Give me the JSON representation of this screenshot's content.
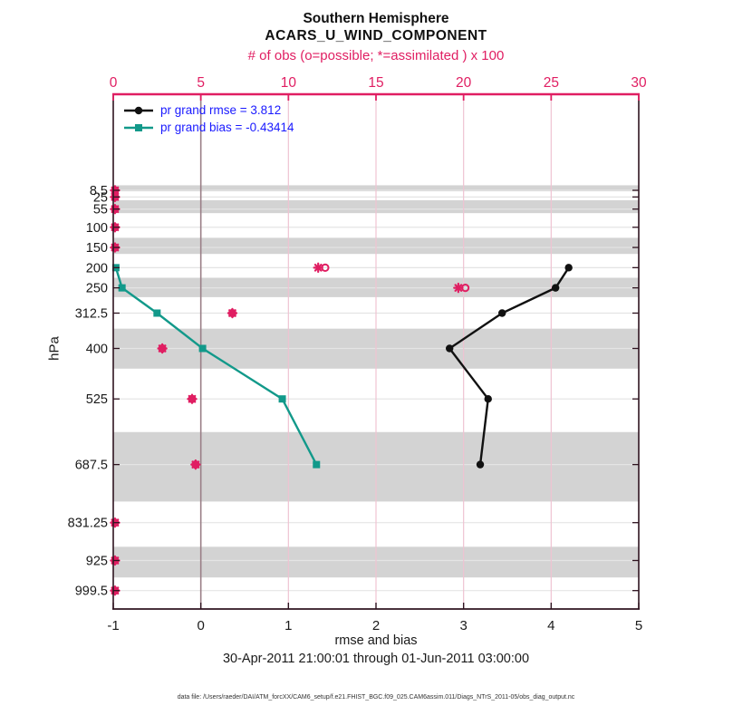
{
  "figure": {
    "title1": "Southern Hemisphere",
    "title2": "ACARS_U_WIND_COMPONENT",
    "top_axis_label": "# of obs (o=possible; *=assimilated ) x 100",
    "x_axis_label": "rmse and bias",
    "y_axis_label": "hPa",
    "date_range": "30-Apr-2011 21:00:01 through 01-Jun-2011 03:00:00",
    "data_file_note": "data file: /Users/raeder/DAI/ATM_forcXX/CAM6_setup/f.e21.FHIST_BGC.f09_025.CAM6assim.011/Diags_NTrS_2011-05/obs_diag_output.nc"
  },
  "legend": {
    "rmse_label": "pr grand rmse = 3.812",
    "bias_label": "pr grand bias = -0.43414"
  },
  "chart_data": {
    "type": "line",
    "orientation": "vertical-profile",
    "title": "Southern Hemisphere ACARS_U_WIND_COMPONENT",
    "x_axis": {
      "label": "rmse and bias",
      "range": [
        -1,
        5
      ],
      "ticks": [
        -1,
        0,
        1,
        2,
        3,
        4,
        5
      ]
    },
    "top_axis": {
      "label": "# of obs (o=possible; *=assimilated ) x 100",
      "range": [
        0,
        30
      ],
      "ticks": [
        0,
        5,
        10,
        15,
        20,
        25,
        30
      ]
    },
    "y_axis": {
      "label": "hPa",
      "direction": "pressure-increasing-downward",
      "tick_levels": [
        8.5,
        25,
        55,
        100,
        150,
        200,
        250,
        312.5,
        400,
        525,
        687.5,
        831.25,
        925,
        999.5
      ]
    },
    "series": [
      {
        "name": "pr grand rmse = 3.812",
        "marker": "circle",
        "color_key": "rmse",
        "levels": [
          200,
          250,
          312.5,
          400,
          525,
          687.5
        ],
        "values": [
          4.2,
          4.05,
          3.44,
          2.84,
          3.28,
          3.19
        ]
      },
      {
        "name": "pr grand bias = -0.43414",
        "marker": "square",
        "color_key": "bias",
        "levels": [
          200,
          250,
          312.5,
          400,
          525,
          687.5
        ],
        "values": [
          -0.97,
          -0.9,
          -0.5,
          0.02,
          0.93,
          1.32
        ]
      }
    ],
    "obs_counts_x100": {
      "levels": [
        8.5,
        25,
        55,
        100,
        150,
        200,
        250,
        312.5,
        400,
        525,
        687.5,
        831.25,
        925,
        999.5
      ],
      "possible_o": [
        0.1,
        0.1,
        0.1,
        0.1,
        0.1,
        12.1,
        20.1,
        6.8,
        2.8,
        4.5,
        4.7,
        0.1,
        0.1,
        0.1
      ],
      "assimilated_star": [
        0.1,
        0.1,
        0.1,
        0.1,
        0.1,
        11.7,
        19.7,
        6.8,
        2.8,
        4.5,
        4.7,
        0.1,
        0.1,
        0.1
      ]
    },
    "shaded_bands_pressure": [
      [
        -4,
        11
      ],
      [
        33,
        65
      ],
      [
        126,
        166
      ],
      [
        225,
        273
      ],
      [
        351,
        450
      ],
      [
        607,
        779
      ],
      [
        891,
        967
      ]
    ],
    "grid": "on",
    "legend_position": "top-left-inside"
  },
  "colors": {
    "pink": "#e01e62",
    "teal": "#12998a",
    "rmse_black": "#111111",
    "legend_text_blue": "#1a1aff",
    "band_gray": "#d3d3d3",
    "h_grid": "#e4e4e4",
    "v_grid_pink": "#efc3d2",
    "zero_line": "#9a7f87",
    "spine_dark": "#2f1420",
    "tick_text": "#1a1a1a"
  }
}
